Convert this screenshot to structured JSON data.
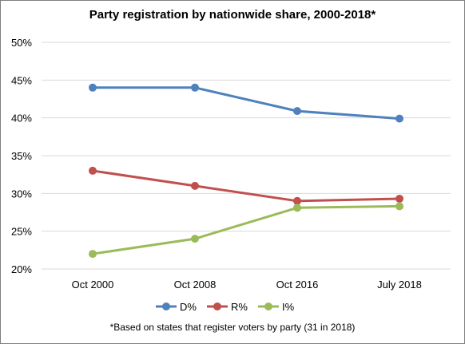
{
  "chart_data": {
    "type": "line",
    "title": "Party registration by nationwide share, 2000-2018*",
    "footnote": "*Based on states that register voters by party (31 in 2018)",
    "categories": [
      "Oct 2000",
      "Oct 2008",
      "Oct 2016",
      "July 2018"
    ],
    "ylim": [
      0.2,
      0.5
    ],
    "y_ticks": [
      "20%",
      "25%",
      "30%",
      "35%",
      "40%",
      "45%",
      "50%"
    ],
    "y_tick_values": [
      0.2,
      0.25,
      0.3,
      0.35,
      0.4,
      0.45,
      0.5
    ],
    "grid": true,
    "legend_position": "bottom",
    "series": [
      {
        "name": "D%",
        "color": "#4f81bd",
        "values": [
          0.44,
          0.44,
          0.409,
          0.399
        ]
      },
      {
        "name": "R%",
        "color": "#c0504d",
        "values": [
          0.33,
          0.31,
          0.29,
          0.293
        ]
      },
      {
        "name": "I%",
        "color": "#9bbb59",
        "values": [
          0.22,
          0.24,
          0.281,
          0.283
        ]
      }
    ]
  }
}
